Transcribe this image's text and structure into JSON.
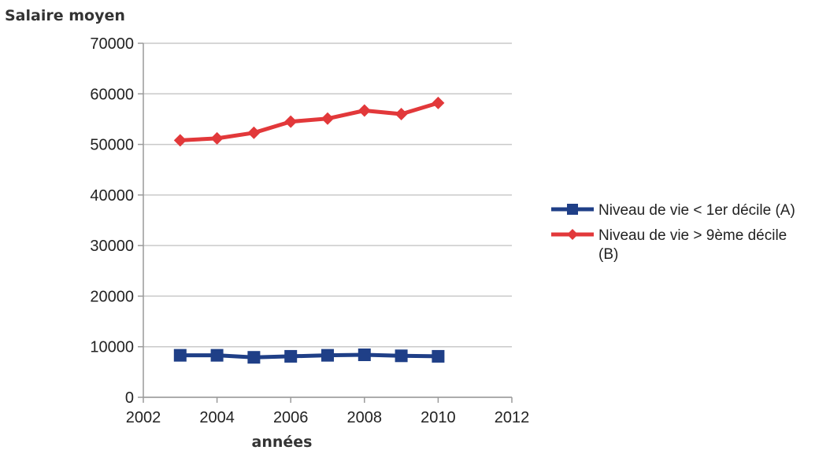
{
  "chart_data": {
    "type": "line",
    "title": "",
    "ylabel": "Salaire moyen",
    "xlabel": "années",
    "xlim": [
      2002,
      2012
    ],
    "ylim": [
      0,
      70000
    ],
    "xticks": [
      2002,
      2004,
      2006,
      2008,
      2010,
      2012
    ],
    "yticks": [
      0,
      10000,
      20000,
      30000,
      40000,
      50000,
      60000,
      70000
    ],
    "grid": "horizontal",
    "legend_position": "right",
    "series": [
      {
        "name": "Niveau de vie < 1er décile (A)",
        "color": "#1f3f87",
        "marker": "square",
        "x": [
          2003,
          2004,
          2005,
          2006,
          2007,
          2008,
          2009,
          2010
        ],
        "y": [
          8300,
          8300,
          7900,
          8100,
          8300,
          8400,
          8200,
          8100
        ]
      },
      {
        "name": "Niveau de vie > 9ème décile (B)",
        "color": "#e2383a",
        "marker": "diamond",
        "x": [
          2003,
          2004,
          2005,
          2006,
          2007,
          2008,
          2009,
          2010
        ],
        "y": [
          50800,
          51200,
          52300,
          54500,
          55100,
          56700,
          56000,
          58200
        ]
      }
    ]
  }
}
